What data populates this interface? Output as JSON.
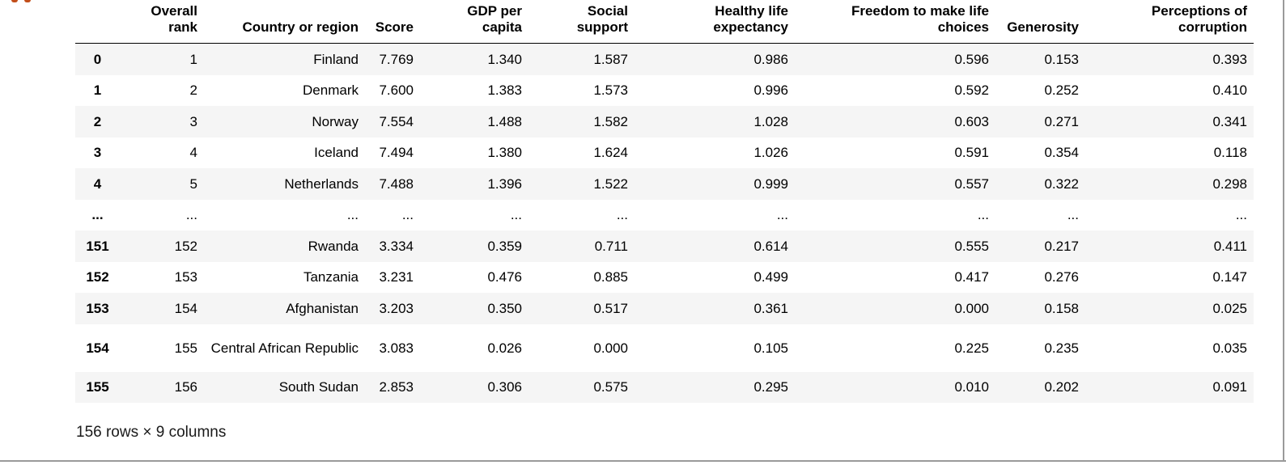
{
  "dataframe": {
    "columns": [
      "",
      "Overall rank",
      "Country or region",
      "Score",
      "GDP per capita",
      "Social support",
      "Healthy life expectancy",
      "Freedom to make life choices",
      "Generosity",
      "Perceptions of corruption"
    ],
    "rows": [
      [
        "0",
        "1",
        "Finland",
        "7.769",
        "1.340",
        "1.587",
        "0.986",
        "0.596",
        "0.153",
        "0.393"
      ],
      [
        "1",
        "2",
        "Denmark",
        "7.600",
        "1.383",
        "1.573",
        "0.996",
        "0.592",
        "0.252",
        "0.410"
      ],
      [
        "2",
        "3",
        "Norway",
        "7.554",
        "1.488",
        "1.582",
        "1.028",
        "0.603",
        "0.271",
        "0.341"
      ],
      [
        "3",
        "4",
        "Iceland",
        "7.494",
        "1.380",
        "1.624",
        "1.026",
        "0.591",
        "0.354",
        "0.118"
      ],
      [
        "4",
        "5",
        "Netherlands",
        "7.488",
        "1.396",
        "1.522",
        "0.999",
        "0.557",
        "0.322",
        "0.298"
      ],
      [
        "...",
        "...",
        "...",
        "...",
        "...",
        "...",
        "...",
        "...",
        "...",
        "..."
      ],
      [
        "151",
        "152",
        "Rwanda",
        "3.334",
        "0.359",
        "0.711",
        "0.614",
        "0.555",
        "0.217",
        "0.411"
      ],
      [
        "152",
        "153",
        "Tanzania",
        "3.231",
        "0.476",
        "0.885",
        "0.499",
        "0.417",
        "0.276",
        "0.147"
      ],
      [
        "153",
        "154",
        "Afghanistan",
        "3.203",
        "0.350",
        "0.517",
        "0.361",
        "0.000",
        "0.158",
        "0.025"
      ],
      [
        "154",
        "155",
        "Central African Republic",
        "3.083",
        "0.026",
        "0.000",
        "0.105",
        "0.225",
        "0.235",
        "0.035"
      ],
      [
        "155",
        "156",
        "South Sudan",
        "2.853",
        "0.306",
        "0.575",
        "0.295",
        "0.010",
        "0.202",
        "0.091"
      ]
    ],
    "shape_text": "156 rows × 9 columns"
  },
  "colors": {
    "striped_row": "#f5f5f5",
    "prompt_accent": "#c24e1a"
  }
}
